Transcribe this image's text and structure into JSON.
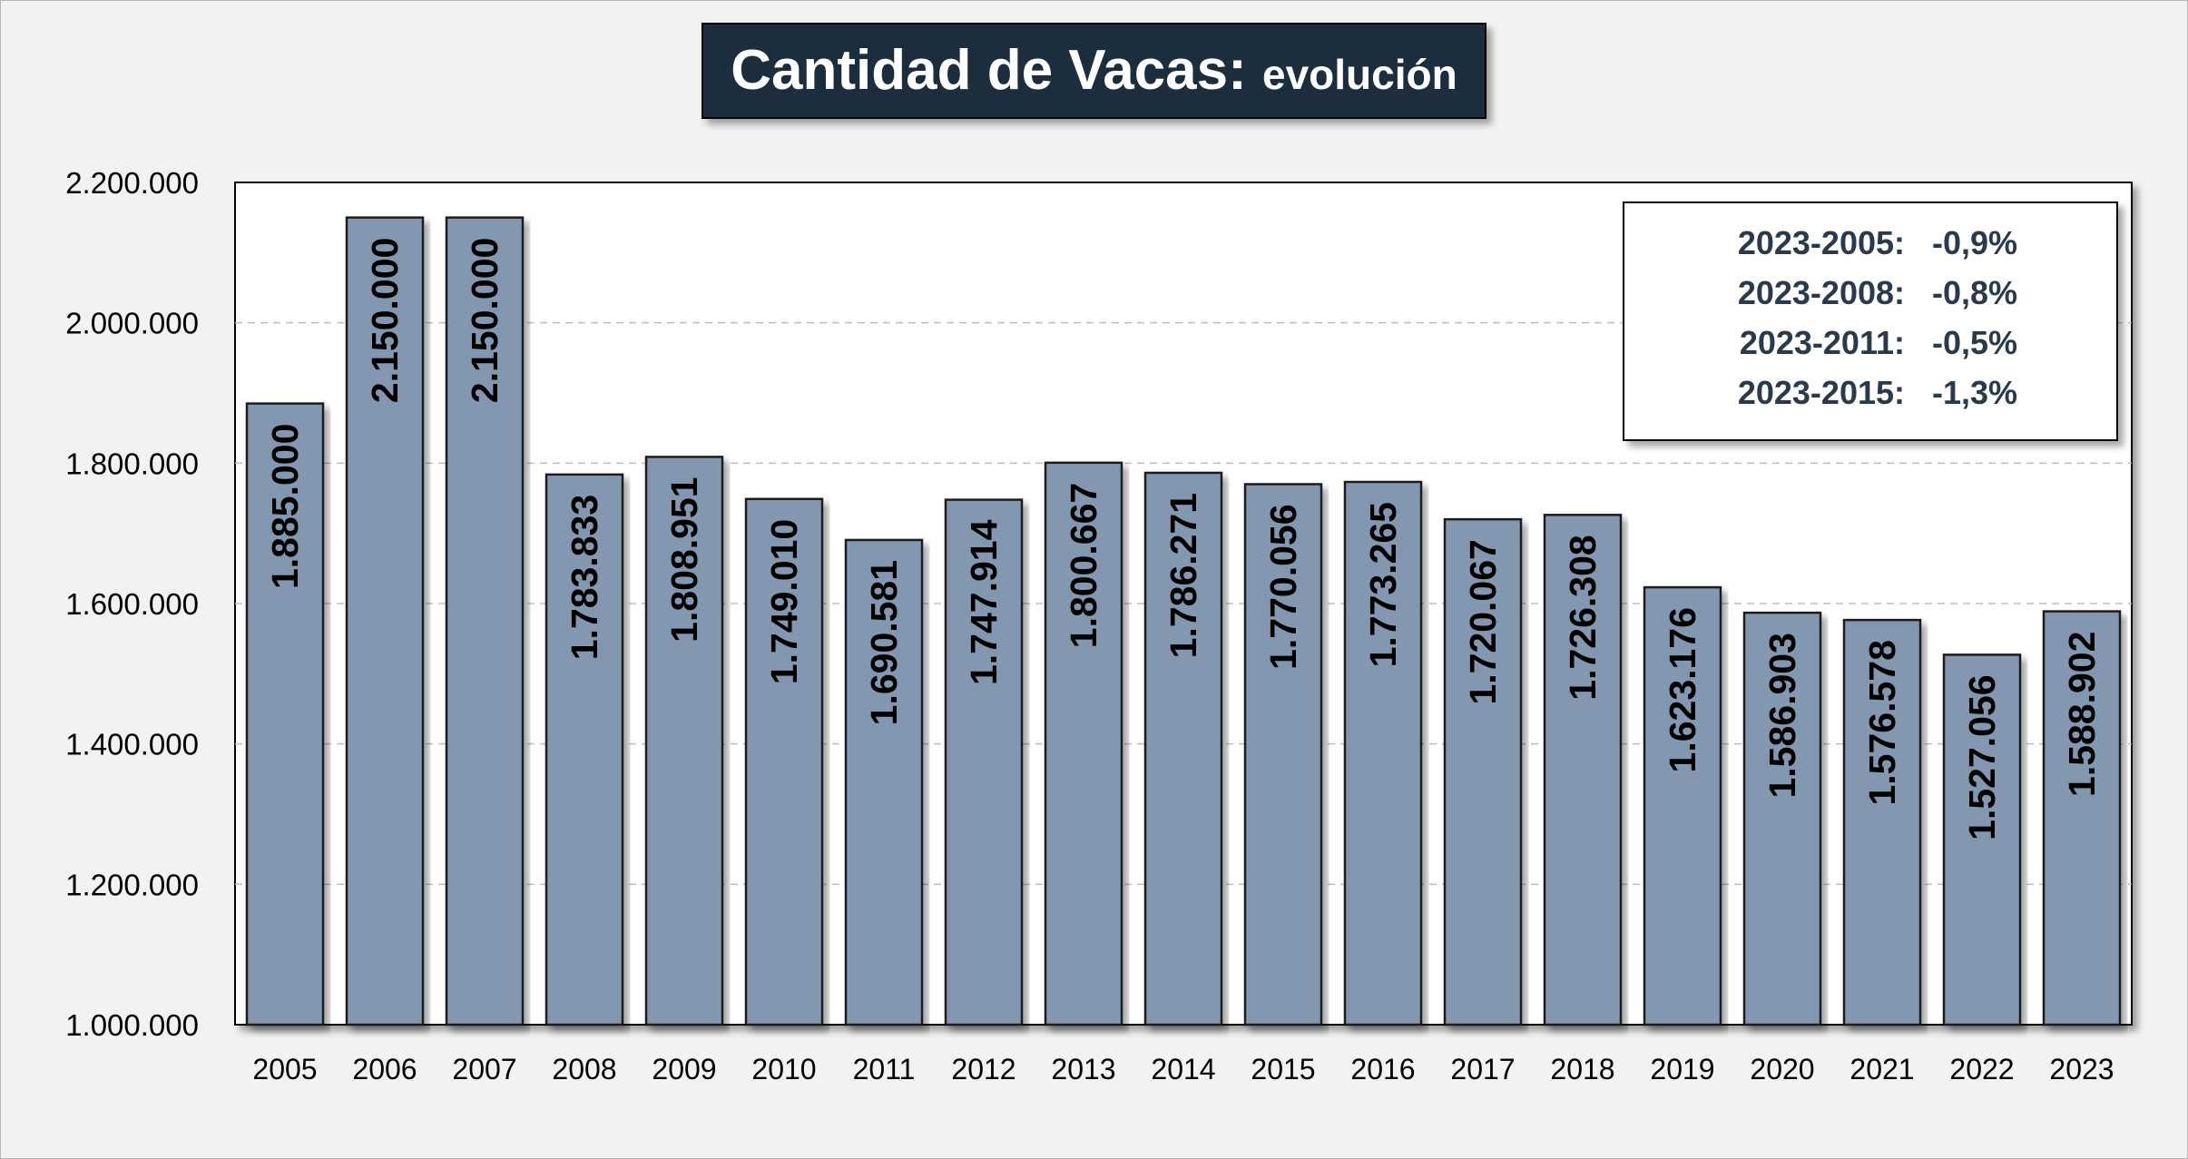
{
  "chart_data": {
    "type": "bar",
    "title": "Cantidad de Vacas:",
    "subtitle": "evolución",
    "categories": [
      "2005",
      "2006",
      "2007",
      "2008",
      "2009",
      "2010",
      "2011",
      "2012",
      "2013",
      "2014",
      "2015",
      "2016",
      "2017",
      "2018",
      "2019",
      "2020",
      "2021",
      "2022",
      "2023"
    ],
    "values": [
      1885000,
      2150000,
      2150000,
      1783833,
      1808951,
      1749010,
      1690581,
      1747914,
      1800667,
      1786271,
      1770056,
      1773265,
      1720067,
      1726308,
      1623176,
      1586903,
      1576578,
      1527056,
      1588902
    ],
    "value_labels": [
      "1.885.000",
      "2.150.000",
      "2.150.000",
      "1.783.833",
      "1.808.951",
      "1.749.010",
      "1.690.581",
      "1.747.914",
      "1.800.667",
      "1.786.271",
      "1.770.056",
      "1.773.265",
      "1.720.067",
      "1.726.308",
      "1.623.176",
      "1.586.903",
      "1.576.578",
      "1.527.056",
      "1.588.902"
    ],
    "ylim": [
      1000000,
      2200000
    ],
    "yticks": [
      1000000,
      1200000,
      1400000,
      1600000,
      1800000,
      2000000,
      2200000
    ],
    "ytick_labels": [
      "1.000.000",
      "1.200.000",
      "1.400.000",
      "1.600.000",
      "1.800.000",
      "2.000.000",
      "2.200.000"
    ],
    "xlabel": "",
    "ylabel": "",
    "grid": true,
    "annotations": [
      {
        "period": "2023-2005:",
        "value": "-0,9%"
      },
      {
        "period": "2023-2008:",
        "value": "-0,8%"
      },
      {
        "period": "2023-2011:",
        "value": "-0,5%"
      },
      {
        "period": "2023-2015:",
        "value": "-1,3%"
      }
    ],
    "colors": {
      "bar": "#8497b0",
      "bar_border": "#1f1f1f",
      "title_bg": "#1f2d3d",
      "plot_bg": "#ffffff",
      "gridline": "#bfbfbf",
      "annotation_text": "#2b3a4a"
    }
  }
}
